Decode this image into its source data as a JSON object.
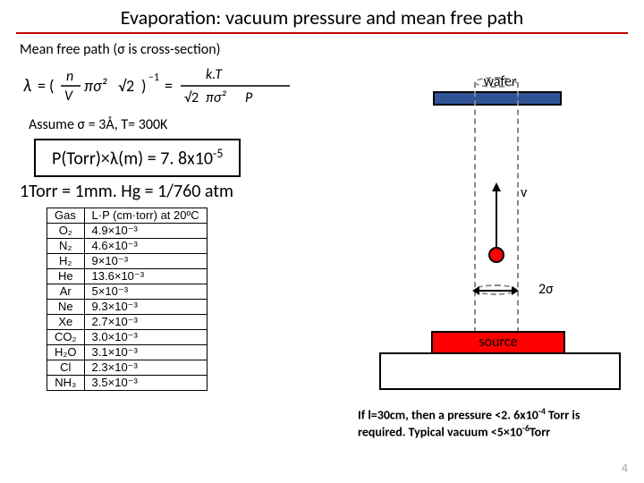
{
  "title": "Evaporation: vacuum pressure and mean free path",
  "subtitle": "Mean free path (σ is cross-section)",
  "assume": "Assume σ = 3Å, T= 300K",
  "boxed_eq_html": "P(Torr)×λ(m) = 7. 8x10<sup>-5</sup>",
  "torr_line": "1Torr = 1mm. Hg = 1/760 atm",
  "table": {
    "headers": [
      "Gas",
      "L·P (cm·torr) at 20ºC"
    ],
    "rows": [
      [
        "O₂",
        "4.9×10⁻³"
      ],
      [
        "N₂",
        "4.6×10⁻³"
      ],
      [
        "H₂",
        "9×10⁻³"
      ],
      [
        "He",
        "13.6×10⁻³"
      ],
      [
        "Ar",
        "5×10⁻³"
      ],
      [
        "Ne",
        "9.3×10⁻³"
      ],
      [
        "Xe",
        "2.7×10⁻³"
      ],
      [
        "CO₂",
        "3.0×10⁻³"
      ],
      [
        "H₂O",
        "3.1×10⁻³"
      ],
      [
        "Cl",
        "2.3×10⁻³"
      ],
      [
        "NH₃",
        "3.5×10⁻³"
      ]
    ]
  },
  "diagram": {
    "wafer": "wafer",
    "source": "source",
    "v": "v",
    "two_sigma": "2σ"
  },
  "footnote_html": "If l=30cm, then a pressure &lt;2. 6x10<sup>-4</sup> Torr is required. Typical vacuum &lt;5×10<sup>-6</sup>Torr",
  "page": "4",
  "formula_svg": {
    "lambda": "λ",
    "eq1": "= (",
    "n": "n",
    "V": "V",
    "pi_s2_root2": "πσ² √2",
    "close_p_inv": ")",
    "neg1": "−1",
    "eq2": "=",
    "kT": "k.T",
    "denom2": "√2πσ² P"
  },
  "fonts": {
    "title_size": 22,
    "body_size": 16,
    "small_size": 14
  },
  "colors": {
    "underline": "#c00000",
    "wafer_fill": "#2f5597",
    "source_fill": "#ff0000",
    "dash": "#888888",
    "pagenum": "#b0a090"
  }
}
